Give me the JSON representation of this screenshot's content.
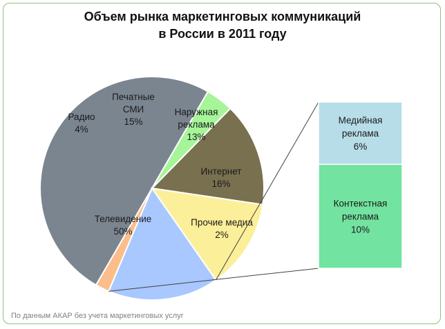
{
  "chart_data": {
    "type": "pie",
    "title": "Объем рынка маркетинговых коммуникаций",
    "subtitle": "в России в 2011 году",
    "slices": [
      {
        "label": "Телевидение",
        "value": 50,
        "pct": "50%",
        "color": "#7b8590"
      },
      {
        "label": "Радио",
        "value": 4,
        "pct": "4%",
        "color": "#a6f598"
      },
      {
        "label": "Печатные СМИ",
        "value": 15,
        "pct": "15%",
        "color": "#78704f"
      },
      {
        "label": "Наружная реклама",
        "value": 13,
        "pct": "13%",
        "color": "#fcef99"
      },
      {
        "label": "Интернет",
        "value": 16,
        "pct": "16%",
        "color": "#a8c8ff"
      },
      {
        "label": "Прочие медиа",
        "value": 2,
        "pct": "2%",
        "color": "#fcbd8a"
      }
    ],
    "breakdown": {
      "of": "Интернет",
      "items": [
        {
          "label": "Медийная реклама",
          "value": 6,
          "pct": "6%",
          "color": "#b7dde8"
        },
        {
          "label": "Контекстная реклама",
          "value": 10,
          "pct": "10%",
          "color": "#72e3a0"
        }
      ]
    },
    "footnote": "По данным АКАР без учета маркетинговых услуг"
  }
}
